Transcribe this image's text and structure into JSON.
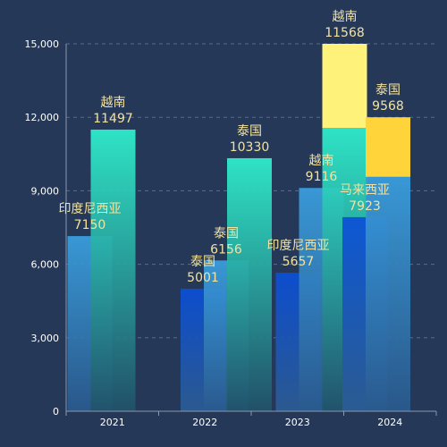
{
  "chart_data": {
    "type": "bar",
    "categories": [
      "2021",
      "2022",
      "2023",
      "2024"
    ],
    "ylim": [
      0,
      15000
    ],
    "yticks": [
      0,
      3000,
      6000,
      9000,
      12000,
      15000
    ],
    "ytick_labels": [
      "0",
      "3,000",
      "6,000",
      "9,000",
      "12,000",
      "15,000"
    ],
    "grid": "dashed horizontal",
    "bars": [
      {
        "category": "2021",
        "slot": 0,
        "label": "印度尼西亚",
        "value": 7150,
        "style": "blue"
      },
      {
        "category": "2021",
        "slot": 1,
        "label": "越南",
        "value": 11497,
        "style": "teal"
      },
      {
        "category": "2022",
        "slot": 0,
        "label": "泰国",
        "value": 5001,
        "style": "deep"
      },
      {
        "category": "2022",
        "slot": 1,
        "label": "泰国",
        "value": 6156,
        "style": "blue"
      },
      {
        "category": "2022",
        "slot": 2,
        "label": "泰国",
        "value": 10330,
        "style": "teal"
      },
      {
        "category": "2023",
        "slot": 0,
        "label": "印度尼西亚",
        "value": 5657,
        "style": "deep"
      },
      {
        "category": "2023",
        "slot": 1,
        "label": "越南",
        "value": 9116,
        "style": "blue"
      },
      {
        "category": "2023",
        "slot": 2,
        "label": "越南",
        "value": 11568,
        "style": "teal",
        "cap_from": 11568,
        "cap_style": "yellow-light"
      },
      {
        "category": "2024",
        "slot": 0,
        "label": "马来西亚",
        "value": 7923,
        "style": "deep"
      },
      {
        "category": "2024",
        "slot": 1,
        "label": "泰国",
        "value": 9568,
        "style": "blue",
        "cap_to": 12000,
        "cap_style": "yellow"
      }
    ],
    "colors": {
      "background": "#263858",
      "axis": "#8b98ad",
      "grid": "#5b6c8a",
      "label": "#f2e2a0",
      "tick": "#ffffff",
      "teal_top": "#2ff2cf",
      "blue_top": "#3aa0e0",
      "deep_top": "#0a4fd8",
      "yellow": "#ffd43a",
      "yellow_light": "#fff27a"
    }
  }
}
